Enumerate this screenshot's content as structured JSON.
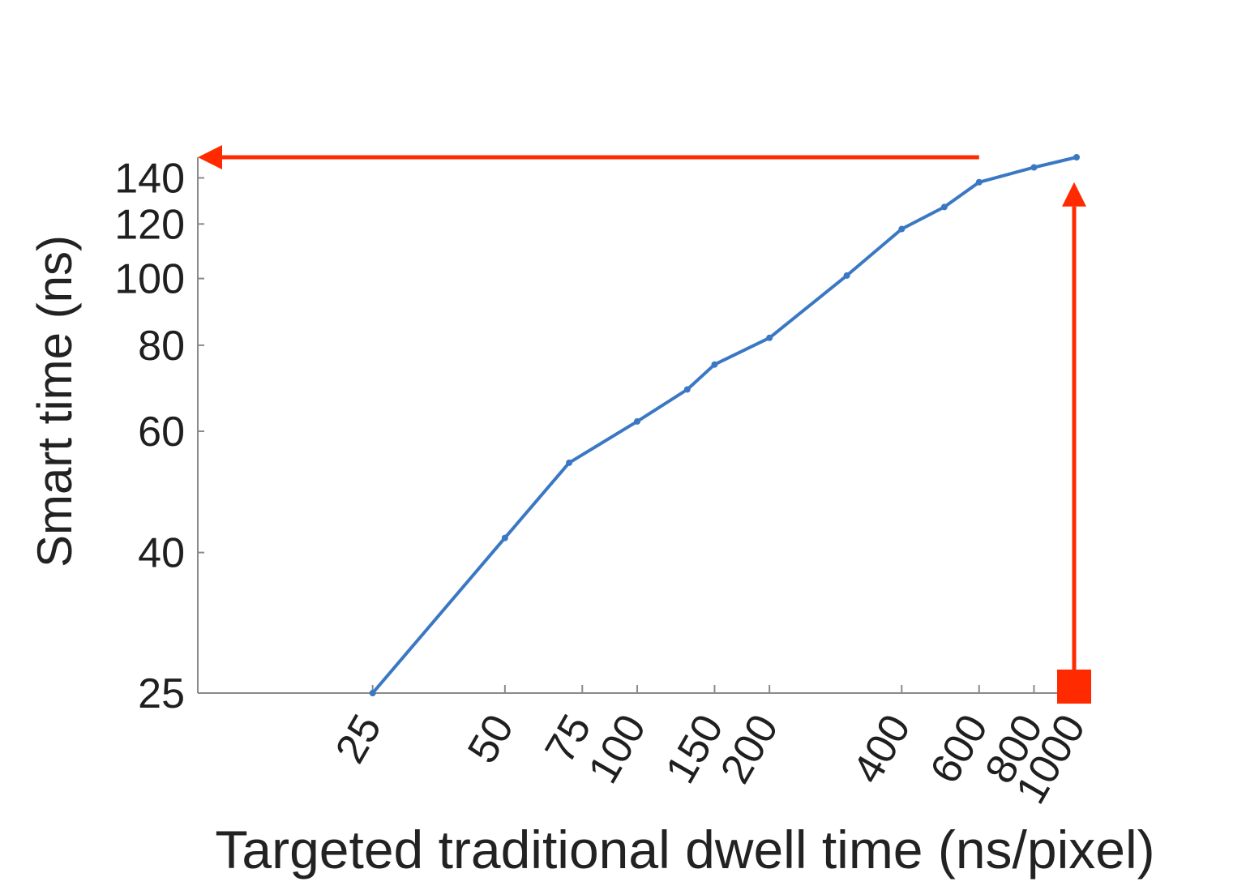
{
  "chart_data": {
    "type": "line",
    "title": "",
    "xlabel": "Targeted traditional dwell time (ns/pixel)",
    "ylabel": "Smart time (ns)",
    "x_scale": "log",
    "y_scale": "log",
    "xlim": [
      10,
      1000
    ],
    "ylim": [
      25,
      150
    ],
    "x_ticks": [
      25,
      50,
      75,
      100,
      150,
      200,
      400,
      600,
      800,
      1000
    ],
    "x_tick_labels": [
      "25",
      "50",
      "75",
      "100",
      "150",
      "200",
      "400",
      "600",
      "800",
      "1000"
    ],
    "y_ticks": [
      25,
      40,
      60,
      80,
      100,
      120,
      140
    ],
    "y_tick_labels": [
      "25",
      "40",
      "60",
      "80",
      "100",
      "120",
      "140"
    ],
    "grid": false,
    "legend": "none",
    "series": [
      {
        "color": "#3a78c4",
        "x": [
          25,
          50,
          70,
          100,
          130,
          150,
          200,
          300,
          400,
          500,
          600,
          800,
          1000
        ],
        "y": [
          25,
          42,
          54,
          62,
          69,
          75,
          82,
          101,
          118,
          127,
          138,
          145,
          150
        ]
      }
    ],
    "annotations": [
      {
        "type": "arrow",
        "color": "#ff2a00",
        "from": [
          1000,
          25
        ],
        "to": [
          1000,
          138
        ]
      },
      {
        "type": "arrow",
        "color": "#ff2a00",
        "from": [
          600,
          150
        ],
        "to": [
          10,
          150
        ]
      },
      {
        "type": "square-marker",
        "color": "#ff2a00",
        "at": [
          1000,
          25
        ]
      }
    ]
  }
}
